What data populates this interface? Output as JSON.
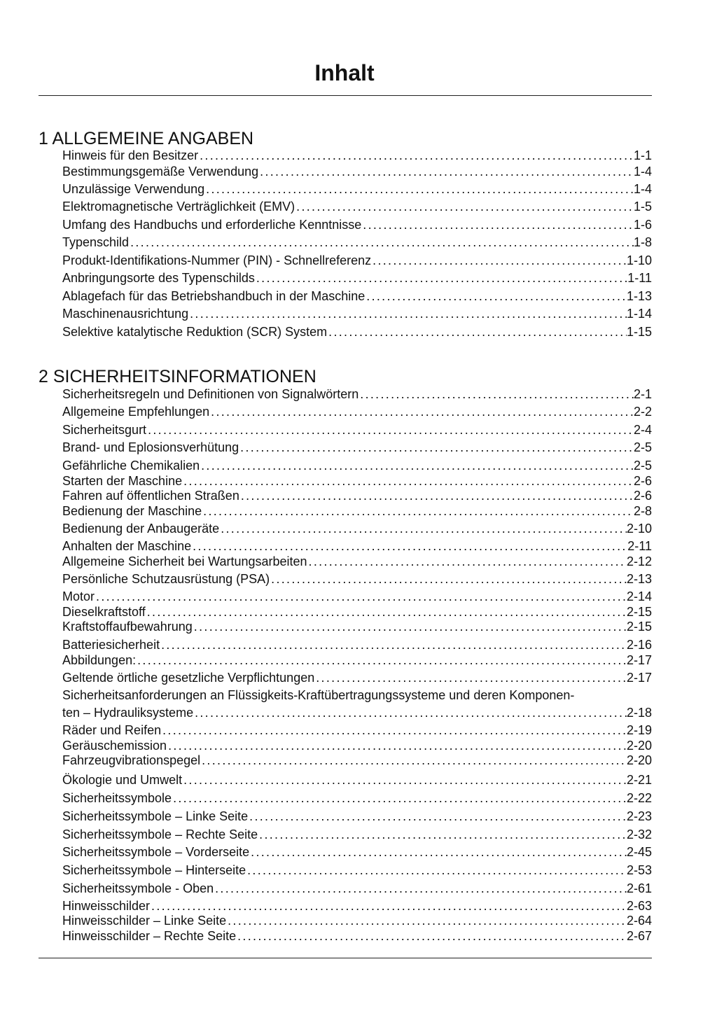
{
  "title": "Inhalt",
  "sections": [
    {
      "heading": "1 ALLGEMEINE ANGABEN",
      "entries": [
        {
          "text": "Hinweis für den Besitzer",
          "page": "1-1"
        },
        {
          "text": "Bestimmungsgemäße Verwendung",
          "page": "1-4"
        },
        {
          "text": "Unzulässige Verwendung",
          "page": "1-4"
        },
        {
          "text": "Elektromagnetische Verträglichkeit (EMV)",
          "page": "1-5"
        },
        {
          "text": "Umfang des Handbuchs und erforderliche Kenntnisse",
          "page": "1-6"
        },
        {
          "text": "Typenschild",
          "page": "1-8"
        },
        {
          "text": "Produkt-Identifikations-Nummer (PIN) - Schnellreferenz",
          "page": "1-10"
        },
        {
          "text": "Anbringungsorte des Typenschilds",
          "page": "1-11"
        },
        {
          "text": "Ablagefach für das Betriebshandbuch in der Maschine",
          "page": "1-13"
        },
        {
          "text": "Maschinenausrichtung",
          "page": "1-14"
        },
        {
          "text": "Selektive katalytische Reduktion (SCR) System",
          "page": "1-15"
        }
      ]
    },
    {
      "heading": "2 SICHERHEITSINFORMATIONEN",
      "entries": [
        {
          "text": "Sicherheitsregeln und Definitionen von Signalwörtern",
          "page": "2-1"
        },
        {
          "text": "Allgemeine Empfehlungen",
          "page": "2-2"
        },
        {
          "text": "Sicherheitsgurt",
          "page": "2-4"
        },
        {
          "text": "Brand- und Eplosionsverhütung",
          "page": "2-5"
        },
        {
          "text": "Gefährliche Chemikalien",
          "page": "2-5"
        },
        {
          "text": "Starten der Maschine",
          "page": "2-6"
        },
        {
          "text": "Fahren auf öffentlichen Straßen",
          "page": "2-6"
        },
        {
          "text": "Bedienung der Maschine",
          "page": "2-8"
        },
        {
          "text": "Bedienung der Anbaugeräte",
          "page": "2-10"
        },
        {
          "text": "Anhalten der Maschine",
          "page": "2-11"
        },
        {
          "text": "Allgemeine Sicherheit bei Wartungsarbeiten",
          "page": "2-12"
        },
        {
          "text": "Persönliche Schutzausrüstung (PSA)",
          "page": "2-13"
        },
        {
          "text": "Motor",
          "page": "2-14"
        },
        {
          "text": "Dieselkraftstoff",
          "page": "2-15"
        },
        {
          "text": "Kraftstoffaufbewahrung",
          "page": "2-15"
        },
        {
          "text": "Batteriesicherheit",
          "page": "2-16"
        },
        {
          "text": "Abbildungen:",
          "page": "2-17"
        },
        {
          "text": "Geltende örtliche gesetzliche Verpflichtungen",
          "page": "2-17"
        },
        {
          "text_line1": "Sicherheitsanforderungen an Flüssigkeits-Kraftübertragungssysteme und deren Komponen-",
          "text": "ten – Hydrauliksysteme",
          "page": "2-18"
        },
        {
          "text": "Räder und Reifen",
          "page": "2-19"
        },
        {
          "text": "Geräuschemission",
          "page": "2-20"
        },
        {
          "text": "Fahrzeugvibrationspegel",
          "page": "2-20"
        },
        {
          "text": "Ökologie und Umwelt",
          "page": "2-21"
        },
        {
          "text": "Sicherheitssymbole",
          "page": "2-22"
        },
        {
          "text": "Sicherheitssymbole – Linke Seite",
          "page": "2-23"
        },
        {
          "text": "Sicherheitssymbole – Rechte Seite",
          "page": "2-32"
        },
        {
          "text": "Sicherheitssymbole – Vorderseite",
          "page": "2-45"
        },
        {
          "text": "Sicherheitssymbole – Hinterseite",
          "page": "2-53"
        },
        {
          "text": "Sicherheitssymbole - Oben",
          "page": "2-61"
        },
        {
          "text": "Hinweisschilder",
          "page": "2-63"
        },
        {
          "text": "Hinweisschilder – Linke Seite",
          "page": "2-64"
        },
        {
          "text": "Hinweisschilder – Rechte Seite",
          "page": "2-67"
        }
      ]
    }
  ]
}
